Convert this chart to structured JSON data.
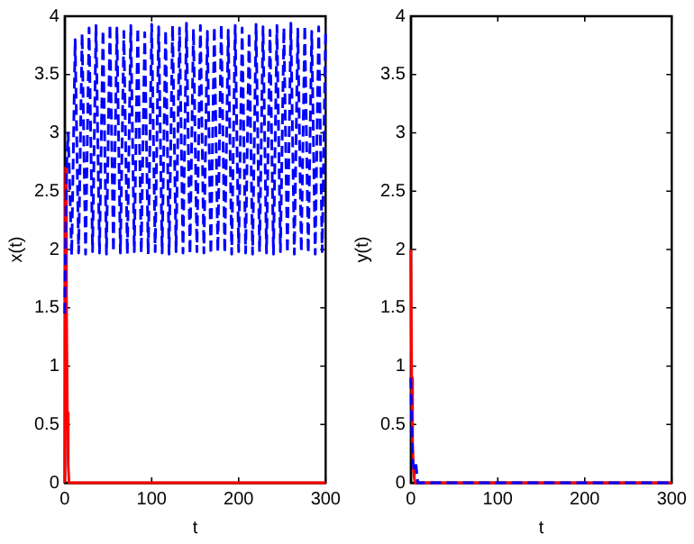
{
  "chart_data": [
    {
      "type": "line",
      "xlabel": "t",
      "ylabel": "x(t)",
      "xlim": [
        0,
        300
      ],
      "ylim": [
        0,
        4
      ],
      "xticks": [
        0,
        100,
        200,
        300
      ],
      "yticks": [
        0,
        0.5,
        1,
        1.5,
        2,
        2.5,
        3,
        3.5,
        4
      ],
      "grid": false,
      "legend": false,
      "marker": "none",
      "series": [
        {
          "color": "#0000ff",
          "line_style": "dashed",
          "x": [
            0,
            2,
            4,
            8,
            12,
            16,
            20,
            24,
            28,
            32,
            36,
            40,
            44,
            48,
            52,
            56,
            60,
            64,
            68,
            72,
            76,
            80,
            84,
            88,
            92,
            96,
            100,
            104,
            108,
            112,
            116,
            120,
            124,
            128,
            132,
            136,
            140,
            144,
            148,
            152,
            156,
            160,
            164,
            168,
            172,
            176,
            180,
            184,
            188,
            192,
            196,
            200,
            204,
            208,
            212,
            216,
            220,
            224,
            228,
            232,
            236,
            240,
            244,
            248,
            252,
            256,
            260,
            264,
            268,
            272,
            276,
            280,
            284,
            288,
            292,
            296,
            300
          ],
          "values": [
            1.45,
            2.7,
            3.0,
            1.95,
            3.8,
            1.97,
            3.85,
            1.96,
            3.9,
            1.98,
            3.92,
            1.97,
            3.88,
            1.96,
            3.93,
            1.98,
            3.9,
            1.97,
            3.87,
            1.96,
            3.92,
            1.98,
            3.9,
            1.97,
            3.86,
            1.96,
            3.93,
            1.98,
            3.91,
            1.97,
            3.88,
            1.96,
            3.92,
            1.98,
            3.9,
            1.97,
            3.94,
            1.96,
            3.89,
            1.98,
            3.92,
            1.97,
            3.87,
            1.96,
            3.91,
            1.98,
            3.93,
            1.97,
            3.88,
            1.96,
            3.92,
            1.98,
            3.9,
            1.97,
            3.86,
            1.96,
            3.93,
            1.98,
            3.91,
            1.97,
            3.88,
            1.96,
            3.92,
            1.98,
            3.9,
            1.97,
            3.94,
            1.96,
            3.89,
            1.98,
            3.92,
            1.97,
            3.87,
            1.96,
            3.91,
            1.98,
            3.9
          ]
        },
        {
          "color": "#ff0000",
          "line_style": "solid",
          "x": [
            0,
            1,
            2,
            3,
            4,
            5,
            300
          ],
          "values": [
            0,
            2.7,
            1.6,
            0.6,
            0.15,
            0,
            0
          ]
        }
      ]
    },
    {
      "type": "line",
      "xlabel": "t",
      "ylabel": "y(t)",
      "xlim": [
        0,
        300
      ],
      "ylim": [
        0,
        4
      ],
      "xticks": [
        0,
        100,
        200,
        300
      ],
      "yticks": [
        0,
        0.5,
        1,
        1.5,
        2,
        2.5,
        3,
        3.5,
        4
      ],
      "grid": false,
      "legend": false,
      "marker": "none",
      "series": [
        {
          "color": "#0000ff",
          "line_style": "dashed",
          "x": [
            0,
            1,
            2,
            4,
            6,
            8,
            300
          ],
          "values": [
            0.9,
            0.5,
            0.2,
            0.1,
            0.15,
            0,
            0
          ]
        },
        {
          "color": "#ff0000",
          "line_style": "solid",
          "x": [
            0,
            1,
            2,
            3,
            4,
            5,
            300
          ],
          "values": [
            2,
            0.9,
            0.35,
            0.12,
            0.04,
            0,
            0
          ]
        }
      ]
    }
  ]
}
